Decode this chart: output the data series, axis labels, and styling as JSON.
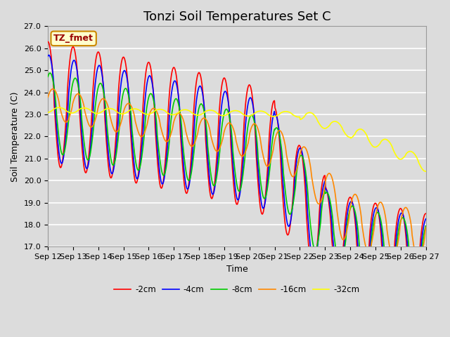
{
  "title": "Tonzi Soil Temperatures Set C",
  "xlabel": "Time",
  "ylabel": "Soil Temperature (C)",
  "ylim": [
    17.0,
    27.0
  ],
  "yticks": [
    17.0,
    18.0,
    19.0,
    20.0,
    21.0,
    22.0,
    23.0,
    24.0,
    25.0,
    26.0,
    27.0
  ],
  "xtick_labels": [
    "Sep 12",
    "Sep 13",
    "Sep 14",
    "Sep 15",
    "Sep 16",
    "Sep 17",
    "Sep 18",
    "Sep 19",
    "Sep 20",
    "Sep 21",
    "Sep 22",
    "Sep 23",
    "Sep 24",
    "Sep 25",
    "Sep 26",
    "Sep 27"
  ],
  "series_colors": [
    "#ff0000",
    "#0000ff",
    "#00cc00",
    "#ff8800",
    "#ffff00"
  ],
  "series_labels": [
    "-2cm",
    "-4cm",
    "-8cm",
    "-16cm",
    "-32cm"
  ],
  "linewidth": 1.2,
  "background_color": "#dcdcdc",
  "grid_color": "#ffffff",
  "annotation_text": "TZ_fmet",
  "annotation_bg": "#ffffcc",
  "annotation_border": "#cc8800",
  "title_fontsize": 13,
  "axis_label_fontsize": 9,
  "tick_fontsize": 8
}
